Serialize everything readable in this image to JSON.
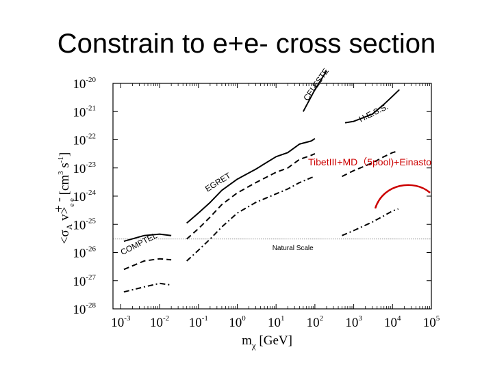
{
  "slide": {
    "title": "Constrain to e+e- cross section"
  },
  "chart_data": {
    "type": "line",
    "x_scale": "log",
    "y_scale": "log",
    "xlim": [
      0.00063,
      100000
    ],
    "ylim": [
      1e-28,
      1e-20
    ],
    "x_ticks": [
      {
        "base": "10",
        "exp": "-3",
        "value": 0.001
      },
      {
        "base": "10",
        "exp": "-2",
        "value": 0.01
      },
      {
        "base": "10",
        "exp": "-1",
        "value": 0.1
      },
      {
        "base": "10",
        "exp": "0",
        "value": 1
      },
      {
        "base": "10",
        "exp": "1",
        "value": 10
      },
      {
        "base": "10",
        "exp": "2",
        "value": 100
      },
      {
        "base": "10",
        "exp": "3",
        "value": 1000
      },
      {
        "base": "10",
        "exp": "4",
        "value": 10000
      },
      {
        "base": "10",
        "exp": "5",
        "value": 100000
      }
    ],
    "y_ticks": [
      {
        "base": "10",
        "exp": "-20",
        "value": 1e-20
      },
      {
        "base": "10",
        "exp": "-21",
        "value": 1e-21
      },
      {
        "base": "10",
        "exp": "-22",
        "value": 1e-22
      },
      {
        "base": "10",
        "exp": "-23",
        "value": 1e-23
      },
      {
        "base": "10",
        "exp": "-24",
        "value": 1e-24
      },
      {
        "base": "10",
        "exp": "-25",
        "value": 1e-25
      },
      {
        "base": "10",
        "exp": "-26",
        "value": 1e-26
      },
      {
        "base": "10",
        "exp": "-27",
        "value": 1e-27
      },
      {
        "base": "10",
        "exp": "-28",
        "value": 1e-28
      }
    ],
    "xlabel": {
      "main": "m",
      "sub": "χ",
      "unit": " [GeV]"
    },
    "ylabel": {
      "open": "<σ",
      "sub": "A",
      "mid": " v>",
      "pair": "e e",
      "charges": "+ -",
      "unit": " [cm",
      "unit_exp": "3",
      "unit_mid": " s",
      "unit_exp2": "-1",
      "close": "]"
    },
    "natural_scale": {
      "label": "Natural Scale",
      "value": 3e-26
    },
    "curve_labels": [
      {
        "id": "comptel",
        "text": "COMPTEL",
        "x": 0.0011,
        "y": 8e-27,
        "rotate": -27
      },
      {
        "id": "egret",
        "text": "EGRET",
        "x": 0.17,
        "y": 1.4e-24,
        "rotate": -32
      },
      {
        "id": "celeste",
        "text": "CELESTE",
        "x": 65,
        "y": 2.3e-21,
        "rotate": -55
      },
      {
        "id": "hess",
        "text": "H.E.S.S.",
        "x": 1500,
        "y": 4.2e-22,
        "rotate": -26
      }
    ],
    "series": [
      {
        "id": "comptel-solid",
        "style": "solid",
        "points": [
          [
            0.0012,
            2.5e-26
          ],
          [
            0.004,
            4e-26
          ],
          [
            0.01,
            4.5e-26
          ],
          [
            0.02,
            4e-26
          ]
        ]
      },
      {
        "id": "comptel-dashed",
        "style": "dashed",
        "points": [
          [
            0.0012,
            2.5e-27
          ],
          [
            0.004,
            5e-27
          ],
          [
            0.01,
            6e-27
          ],
          [
            0.02,
            5.5e-27
          ]
        ]
      },
      {
        "id": "comptel-dashdot",
        "style": "dashdot",
        "points": [
          [
            0.0012,
            4e-28
          ],
          [
            0.004,
            6e-28
          ],
          [
            0.01,
            8e-28
          ],
          [
            0.02,
            7e-28
          ]
        ]
      },
      {
        "id": "egret-solid",
        "style": "solid",
        "points": [
          [
            0.05,
            1.1e-25
          ],
          [
            0.1,
            2.5e-25
          ],
          [
            0.2,
            6e-25
          ],
          [
            0.4,
            1.6e-24
          ],
          [
            1,
            4e-24
          ],
          [
            3,
            9e-24
          ],
          [
            10,
            2.5e-23
          ],
          [
            20,
            3.5e-23
          ],
          [
            40,
            7e-23
          ],
          [
            80,
            9e-23
          ],
          [
            100,
            1.1e-22
          ]
        ]
      },
      {
        "id": "egret-dashed",
        "style": "dashed",
        "points": [
          [
            0.05,
            3e-26
          ],
          [
            0.1,
            7e-26
          ],
          [
            0.2,
            1.8e-25
          ],
          [
            0.4,
            5e-25
          ],
          [
            1,
            1.3e-24
          ],
          [
            3,
            3e-24
          ],
          [
            10,
            7e-24
          ],
          [
            20,
            1e-23
          ],
          [
            40,
            2e-23
          ],
          [
            80,
            2.8e-23
          ],
          [
            100,
            3.2e-23
          ]
        ]
      },
      {
        "id": "egret-dashdot",
        "style": "dashdot",
        "points": [
          [
            0.05,
            5e-27
          ],
          [
            0.1,
            1.2e-26
          ],
          [
            0.2,
            3e-26
          ],
          [
            0.4,
            8e-26
          ],
          [
            1,
            2.5e-25
          ],
          [
            3,
            6e-25
          ],
          [
            10,
            1.2e-24
          ],
          [
            20,
            1.8e-24
          ],
          [
            40,
            3e-24
          ],
          [
            80,
            4.5e-24
          ],
          [
            100,
            5e-24
          ]
        ]
      },
      {
        "id": "celeste-solid",
        "style": "solid",
        "points": [
          [
            50,
            1e-21
          ],
          [
            100,
            6e-21
          ],
          [
            200,
            2.8e-20
          ]
        ]
      },
      {
        "id": "hess-solid",
        "style": "solid",
        "points": [
          [
            600,
            4e-22
          ],
          [
            1000,
            4.5e-22
          ],
          [
            3000,
            8e-22
          ],
          [
            6000,
            1.8e-21
          ],
          [
            10000,
            3.5e-21
          ],
          [
            15000,
            6e-21
          ]
        ]
      },
      {
        "id": "tibet-dashed",
        "style": "dashed",
        "points": [
          [
            500,
            5e-24
          ],
          [
            1000,
            8e-24
          ],
          [
            3000,
            1.5e-23
          ],
          [
            6000,
            2.5e-23
          ],
          [
            10000,
            3.5e-23
          ],
          [
            14000,
            4e-23
          ]
        ]
      },
      {
        "id": "tibet-dashdot",
        "style": "dashdot",
        "points": [
          [
            500,
            4e-26
          ],
          [
            1000,
            6e-26
          ],
          [
            3000,
            1.2e-25
          ],
          [
            6000,
            2e-25
          ],
          [
            10000,
            3e-25
          ],
          [
            14000,
            3.5e-25
          ]
        ]
      }
    ],
    "annotation": {
      "text": "TibetIII+MD（5pool)+Einasto",
      "color": "#cc0000"
    }
  }
}
